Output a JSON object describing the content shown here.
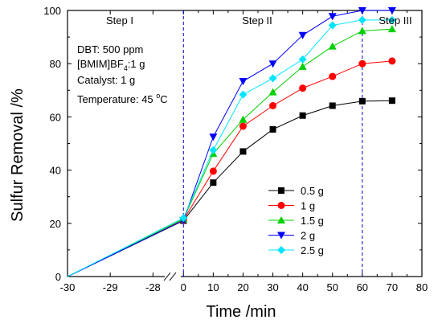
{
  "chart_data": {
    "type": "line",
    "title": "",
    "xlabel": "Time /min",
    "ylabel": "Sulfur Removal /%",
    "ylim": [
      0,
      100
    ],
    "xlim_break": {
      "left": [
        -30,
        -27.5
      ],
      "right": [
        -2.5,
        80
      ],
      "left_ticks": [
        "-30",
        "-29",
        "-28"
      ],
      "right_ticks": [
        "0",
        "10",
        "20",
        "30",
        "40",
        "50",
        "60",
        "70",
        "80"
      ]
    },
    "yticks": [
      "0",
      "20",
      "40",
      "60",
      "80",
      "100"
    ],
    "x": [
      -30,
      0,
      10,
      20,
      30,
      40,
      50,
      60,
      70
    ],
    "series": [
      {
        "name": "0.5 g",
        "color": "#000000",
        "marker": "square",
        "values": [
          0,
          21,
          35.3,
          47,
          55.3,
          60.5,
          64.2,
          65.9,
          66.1
        ]
      },
      {
        "name": "1 g",
        "color": "#ff0000",
        "marker": "circle",
        "values": [
          0,
          21.3,
          39.6,
          56.5,
          64.2,
          70.8,
          75.2,
          80,
          81
        ]
      },
      {
        "name": "1.5 g",
        "color": "#00d000",
        "marker": "triangle-up",
        "values": [
          0,
          21.6,
          46.2,
          59,
          69.3,
          78.9,
          86.5,
          92.3,
          93
        ]
      },
      {
        "name": "2 g",
        "color": "#0000ff",
        "marker": "triangle-down",
        "values": [
          0,
          21.1,
          52.5,
          73.4,
          80,
          90.7,
          97.8,
          100,
          100
        ]
      },
      {
        "name": "2.5 g",
        "color": "#00e5ff",
        "marker": "diamond",
        "values": [
          0,
          22,
          47.5,
          68.4,
          74.5,
          81.6,
          94.4,
          96.4,
          96.4
        ]
      }
    ],
    "steps": [
      "Step I",
      "Step II",
      "Step III"
    ],
    "step_boundaries": [
      0,
      60
    ],
    "conditions": {
      "dbt": "DBT: 500 ppm",
      "il_prefix": "[BMIM]BF",
      "il_sub": "4",
      "il_suffix": ":1 g",
      "catalyst": "Catalyst: 1 g",
      "temp_prefix": "Temperature: 45 ",
      "temp_sup": "o",
      "temp_suffix": "C"
    },
    "legend_position": "center-right",
    "grid": false
  }
}
